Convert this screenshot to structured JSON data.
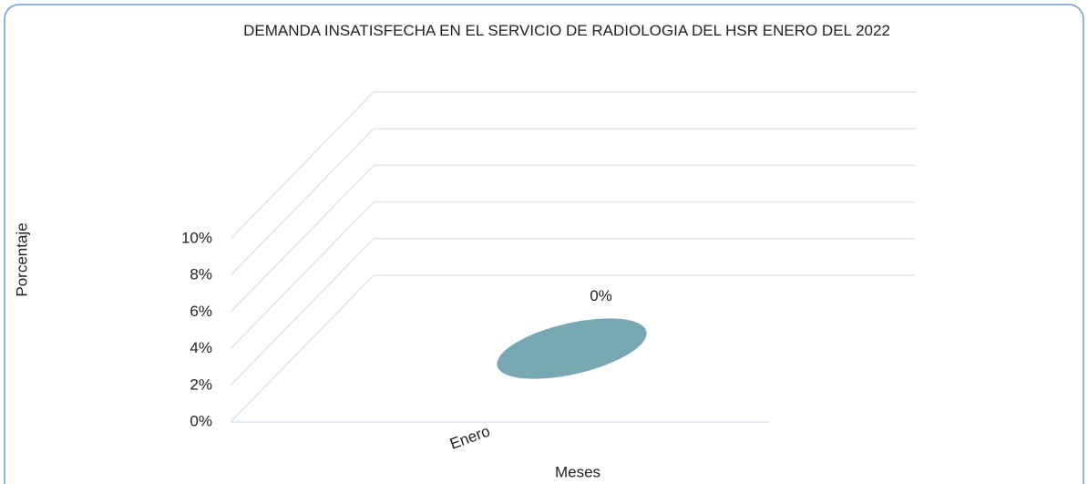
{
  "chart_data": {
    "type": "bar3d",
    "title": "DEMANDA INSATISFECHA EN EL SERVICIO DE RADIOLOGIA DEL HSR  ENERO DEL 2022",
    "x_label": "Meses",
    "y_label": "Porcentaje",
    "categories": [
      "Enero"
    ],
    "values": [
      0
    ],
    "value_labels": [
      "0%"
    ],
    "color": "#78a8b4",
    "ylim": [
      0,
      10
    ],
    "yticks": [
      {
        "value": 0,
        "label": "0%"
      },
      {
        "value": 2,
        "label": "2%"
      },
      {
        "value": 4,
        "label": "4%"
      },
      {
        "value": 6,
        "label": "6%"
      },
      {
        "value": 8,
        "label": "8%"
      },
      {
        "value": 10,
        "label": "10%"
      }
    ],
    "grid": true
  }
}
